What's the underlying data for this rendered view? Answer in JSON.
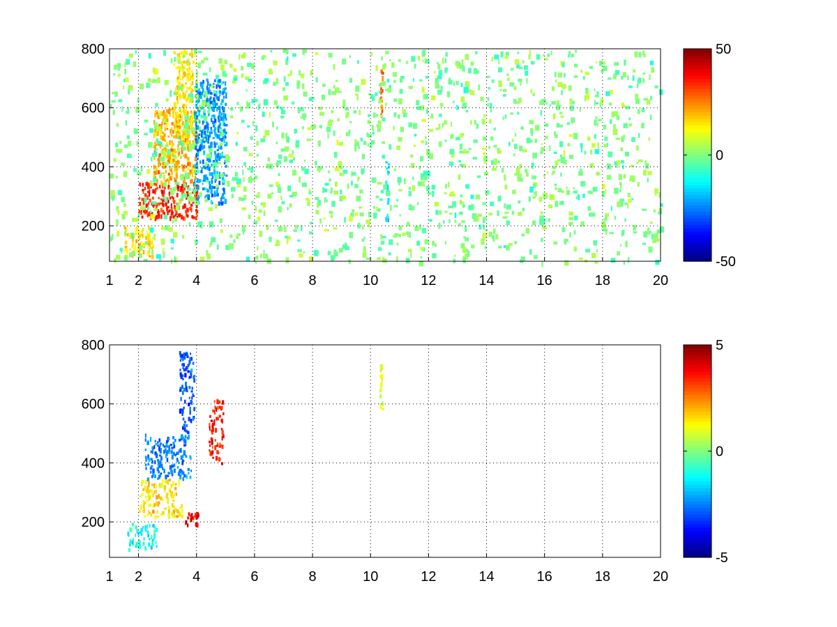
{
  "chart_data": [
    {
      "type": "heatmap",
      "title": "",
      "xlabel": "",
      "ylabel": "",
      "xlim": [
        1,
        20
      ],
      "ylim": [
        80,
        800
      ],
      "x_ticks": [
        "1",
        "2",
        "4",
        "6",
        "8",
        "10",
        "12",
        "14",
        "16",
        "18",
        "20"
      ],
      "x_tick_values": [
        1,
        2,
        4,
        6,
        8,
        10,
        12,
        14,
        16,
        18,
        20
      ],
      "y_ticks": [
        "200",
        "400",
        "600",
        "800"
      ],
      "y_tick_values": [
        200,
        400,
        600,
        800
      ],
      "grid": true,
      "colormap": "jet",
      "colorbar": {
        "min": -50,
        "max": 50,
        "ticks": [
          "-50",
          "0",
          "50"
        ],
        "tick_values": [
          -50,
          0,
          50
        ]
      },
      "features": [
        {
          "x_range": [
            2.0,
            4.0
          ],
          "y_range": [
            230,
            350
          ],
          "value": 35
        },
        {
          "x_range": [
            2.5,
            4.0
          ],
          "y_range": [
            350,
            600
          ],
          "value": 20
        },
        {
          "x_range": [
            3.2,
            3.9
          ],
          "y_range": [
            500,
            800
          ],
          "value": 15
        },
        {
          "x_range": [
            3.9,
            5.0
          ],
          "y_range": [
            280,
            700
          ],
          "value": -22
        },
        {
          "x_range": [
            1.5,
            2.5
          ],
          "y_range": [
            100,
            200
          ],
          "value": 15
        },
        {
          "x_range": [
            10.3,
            10.4
          ],
          "y_range": [
            580,
            740
          ],
          "value": 25
        },
        {
          "x_range": [
            10.5,
            10.6
          ],
          "y_range": [
            220,
            420
          ],
          "value": -15
        }
      ]
    },
    {
      "type": "heatmap",
      "title": "",
      "xlabel": "",
      "ylabel": "",
      "xlim": [
        1,
        20
      ],
      "ylim": [
        80,
        800
      ],
      "x_ticks": [
        "1",
        "2",
        "4",
        "6",
        "8",
        "10",
        "12",
        "14",
        "16",
        "18",
        "20"
      ],
      "x_tick_values": [
        1,
        2,
        4,
        6,
        8,
        10,
        12,
        14,
        16,
        18,
        20
      ],
      "y_ticks": [
        "200",
        "400",
        "600",
        "800"
      ],
      "y_tick_values": [
        200,
        400,
        600,
        800
      ],
      "grid": true,
      "colormap": "jet",
      "colorbar": {
        "min": -5,
        "max": 5,
        "ticks": [
          "-5",
          "0",
          "5"
        ],
        "tick_values": [
          -5,
          0,
          5
        ]
      },
      "features": [
        {
          "x_range": [
            2.2,
            3.8
          ],
          "y_range": [
            350,
            500
          ],
          "value": -2.5
        },
        {
          "x_range": [
            3.4,
            3.9
          ],
          "y_range": [
            500,
            780
          ],
          "value": -3
        },
        {
          "x_range": [
            2.0,
            3.5
          ],
          "y_range": [
            220,
            350
          ],
          "value": 1.5
        },
        {
          "x_range": [
            1.6,
            2.6
          ],
          "y_range": [
            110,
            200
          ],
          "value": -1
        },
        {
          "x_range": [
            4.4,
            4.9
          ],
          "y_range": [
            400,
            620
          ],
          "value": 3.5
        },
        {
          "x_range": [
            3.6,
            4.1
          ],
          "y_range": [
            190,
            240
          ],
          "value": 4
        },
        {
          "x_range": [
            10.3,
            10.4
          ],
          "y_range": [
            580,
            740
          ],
          "value": 0.8
        }
      ]
    }
  ]
}
